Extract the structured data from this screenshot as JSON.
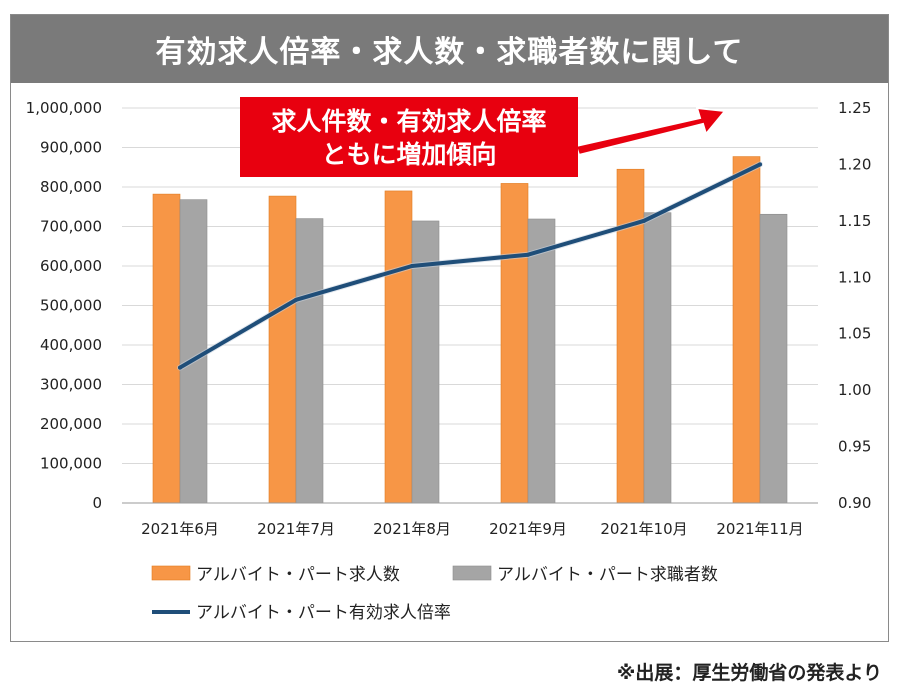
{
  "title": "有効求人倍率・求人数・求職者数に関して",
  "source": "※出展：厚生労働省の発表より",
  "callout": {
    "line1": "求人件数・有効求人倍率",
    "line2": "ともに増加傾向"
  },
  "colors": {
    "bar1": "#F79646",
    "bar2": "#A5A5A5",
    "line": "#1F4E79",
    "callout": "#E8000F",
    "title_bg": "#7A7A7A"
  },
  "chart_data": {
    "type": "bar",
    "categories": [
      "2021年6月",
      "2021年7月",
      "2021年8月",
      "2021年9月",
      "2021年10月",
      "2021年11月"
    ],
    "series": [
      {
        "name": "アルバイト・パート求人数",
        "kind": "bar",
        "axis": "left",
        "values": [
          782000,
          777000,
          790000,
          809000,
          845000,
          877000
        ]
      },
      {
        "name": "アルバイト・パート求職者数",
        "kind": "bar",
        "axis": "left",
        "values": [
          768000,
          720000,
          714000,
          719000,
          735000,
          731000
        ]
      },
      {
        "name": "アルバイト・パート有効求人倍率",
        "kind": "line",
        "axis": "right",
        "values": [
          1.02,
          1.08,
          1.11,
          1.12,
          1.15,
          1.2
        ]
      }
    ],
    "ylim": [
      0,
      1000000
    ],
    "y_ticks": [
      "0",
      "100,000",
      "200,000",
      "300,000",
      "400,000",
      "500,000",
      "600,000",
      "700,000",
      "800,000",
      "900,000",
      "1,000,000"
    ],
    "y2lim": [
      0.9,
      1.25
    ],
    "y2_ticks": [
      "0.90",
      "0.95",
      "1.00",
      "1.05",
      "1.10",
      "1.15",
      "1.20",
      "1.25"
    ],
    "legend_position": "bottom"
  }
}
